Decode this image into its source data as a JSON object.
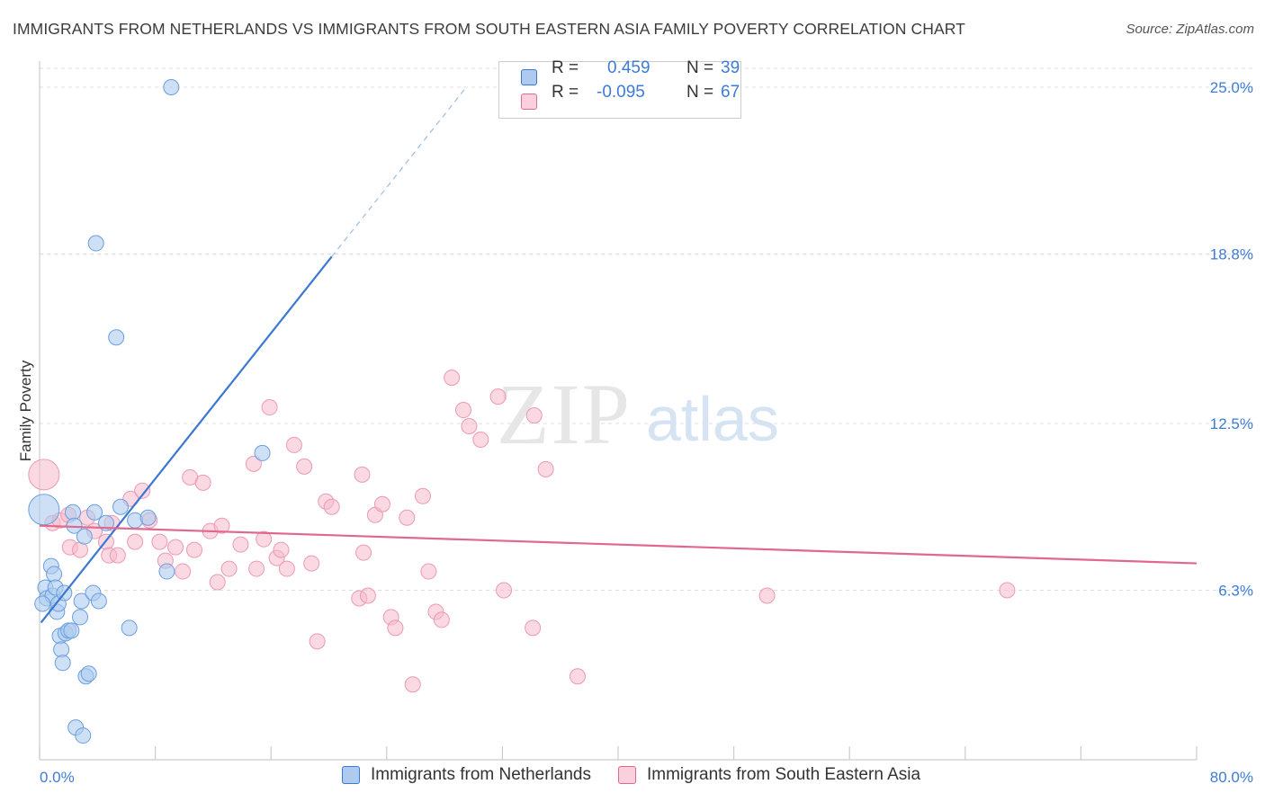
{
  "title": "IMMIGRANTS FROM NETHERLANDS VS IMMIGRANTS FROM SOUTH EASTERN ASIA FAMILY POVERTY CORRELATION CHART",
  "source": "Source: ZipAtlas.com",
  "watermark": {
    "zip": "ZIP",
    "atlas": "atlas"
  },
  "colors": {
    "blue": "#3a78d4",
    "blue_fill": "#aecbef",
    "pink": "#e0688f",
    "pink_fill": "#f5b9cb",
    "value_text": "#3d7bd6",
    "grid": "#dddddd"
  },
  "stats": {
    "rows": [
      {
        "r_label": "R =",
        "r_value": "0.459",
        "n_label": "N =",
        "n_value": "39"
      },
      {
        "r_label": "R =",
        "r_value": "-0.095",
        "n_label": "N =",
        "n_value": "67"
      }
    ]
  },
  "legend": {
    "series1": "Immigrants from Netherlands",
    "series2": "Immigrants from South Eastern Asia"
  },
  "chart_data": {
    "type": "scatter",
    "title": "IMMIGRANTS FROM NETHERLANDS VS IMMIGRANTS FROM SOUTH EASTERN ASIA FAMILY POVERTY CORRELATION CHART",
    "xlabel": "",
    "ylabel": "Family Poverty",
    "xlim": [
      0,
      80
    ],
    "ylim": [
      0,
      25.6
    ],
    "x_tick_labels": [
      "0.0%",
      "80.0%"
    ],
    "y_ticks": [
      6.3,
      12.5,
      18.8,
      25.0
    ],
    "y_tick_labels": [
      "6.3%",
      "12.5%",
      "18.8%",
      "25.0%"
    ],
    "grid": "horizontal dashed",
    "series": [
      {
        "name": "Immigrants from Netherlands",
        "color": "#3a78d4",
        "trend": {
          "x": [
            0.1,
            20.2
          ],
          "y": [
            5.1,
            18.7
          ],
          "dashed_extension_to": [
            29.5,
            25.0
          ]
        },
        "points": [
          [
            0.3,
            9.3
          ],
          [
            0.4,
            6.4
          ],
          [
            0.5,
            6.0
          ],
          [
            0.8,
            7.2
          ],
          [
            0.9,
            6.1
          ],
          [
            1.0,
            6.9
          ],
          [
            1.1,
            6.4
          ],
          [
            1.2,
            5.5
          ],
          [
            1.3,
            5.8
          ],
          [
            1.4,
            4.6
          ],
          [
            1.5,
            4.1
          ],
          [
            1.6,
            3.6
          ],
          [
            1.7,
            6.2
          ],
          [
            1.8,
            4.7
          ],
          [
            2.0,
            4.8
          ],
          [
            2.2,
            4.8
          ],
          [
            2.3,
            9.2
          ],
          [
            2.4,
            8.7
          ],
          [
            2.5,
            1.2
          ],
          [
            2.8,
            5.3
          ],
          [
            2.9,
            5.9
          ],
          [
            3.0,
            0.9
          ],
          [
            3.1,
            8.3
          ],
          [
            3.2,
            3.1
          ],
          [
            3.4,
            3.2
          ],
          [
            3.7,
            6.2
          ],
          [
            3.8,
            9.2
          ],
          [
            4.1,
            5.9
          ],
          [
            4.6,
            8.8
          ],
          [
            5.6,
            9.4
          ],
          [
            6.2,
            4.9
          ],
          [
            6.6,
            8.9
          ],
          [
            7.5,
            9.0
          ],
          [
            8.8,
            7.0
          ],
          [
            9.1,
            25.0
          ],
          [
            15.4,
            11.4
          ],
          [
            3.9,
            19.2
          ],
          [
            5.3,
            15.7
          ],
          [
            0.2,
            5.8
          ]
        ]
      },
      {
        "name": "Immigrants from South Eastern Asia",
        "color": "#e0688f",
        "trend": {
          "x": [
            0.0,
            80.0
          ],
          "y": [
            8.7,
            7.3
          ]
        },
        "points": [
          [
            0.3,
            10.6
          ],
          [
            0.9,
            8.8
          ],
          [
            1.4,
            8.9
          ],
          [
            2.0,
            9.1
          ],
          [
            2.1,
            7.9
          ],
          [
            2.8,
            7.8
          ],
          [
            3.3,
            9.0
          ],
          [
            3.8,
            8.5
          ],
          [
            4.6,
            8.1
          ],
          [
            4.8,
            7.6
          ],
          [
            5.4,
            7.6
          ],
          [
            6.3,
            9.7
          ],
          [
            6.6,
            8.1
          ],
          [
            7.1,
            10.0
          ],
          [
            7.6,
            8.9
          ],
          [
            8.3,
            8.1
          ],
          [
            8.7,
            7.4
          ],
          [
            9.4,
            7.9
          ],
          [
            9.9,
            7.0
          ],
          [
            10.4,
            10.5
          ],
          [
            10.7,
            7.8
          ],
          [
            11.3,
            10.3
          ],
          [
            11.8,
            8.5
          ],
          [
            12.3,
            6.6
          ],
          [
            12.6,
            8.7
          ],
          [
            13.1,
            7.1
          ],
          [
            13.9,
            8.0
          ],
          [
            14.8,
            11.0
          ],
          [
            15.0,
            7.1
          ],
          [
            15.5,
            8.2
          ],
          [
            15.9,
            13.1
          ],
          [
            16.4,
            7.5
          ],
          [
            16.7,
            7.8
          ],
          [
            17.1,
            7.1
          ],
          [
            17.6,
            11.7
          ],
          [
            18.3,
            10.9
          ],
          [
            18.8,
            7.3
          ],
          [
            19.2,
            4.4
          ],
          [
            19.8,
            9.6
          ],
          [
            20.2,
            9.4
          ],
          [
            22.1,
            6.0
          ],
          [
            22.3,
            10.6
          ],
          [
            22.4,
            7.7
          ],
          [
            22.7,
            6.1
          ],
          [
            23.2,
            9.1
          ],
          [
            23.7,
            9.5
          ],
          [
            24.3,
            5.3
          ],
          [
            24.6,
            4.9
          ],
          [
            25.4,
            9.0
          ],
          [
            25.8,
            2.8
          ],
          [
            26.5,
            9.8
          ],
          [
            26.9,
            7.0
          ],
          [
            27.4,
            5.5
          ],
          [
            27.8,
            5.2
          ],
          [
            28.5,
            14.2
          ],
          [
            29.3,
            13.0
          ],
          [
            29.7,
            12.4
          ],
          [
            30.5,
            11.9
          ],
          [
            31.7,
            13.5
          ],
          [
            32.1,
            6.3
          ],
          [
            34.1,
            4.9
          ],
          [
            34.2,
            12.8
          ],
          [
            35.0,
            10.8
          ],
          [
            37.2,
            3.1
          ],
          [
            50.3,
            6.1
          ],
          [
            66.9,
            6.3
          ],
          [
            5.0,
            8.8
          ]
        ]
      }
    ]
  }
}
